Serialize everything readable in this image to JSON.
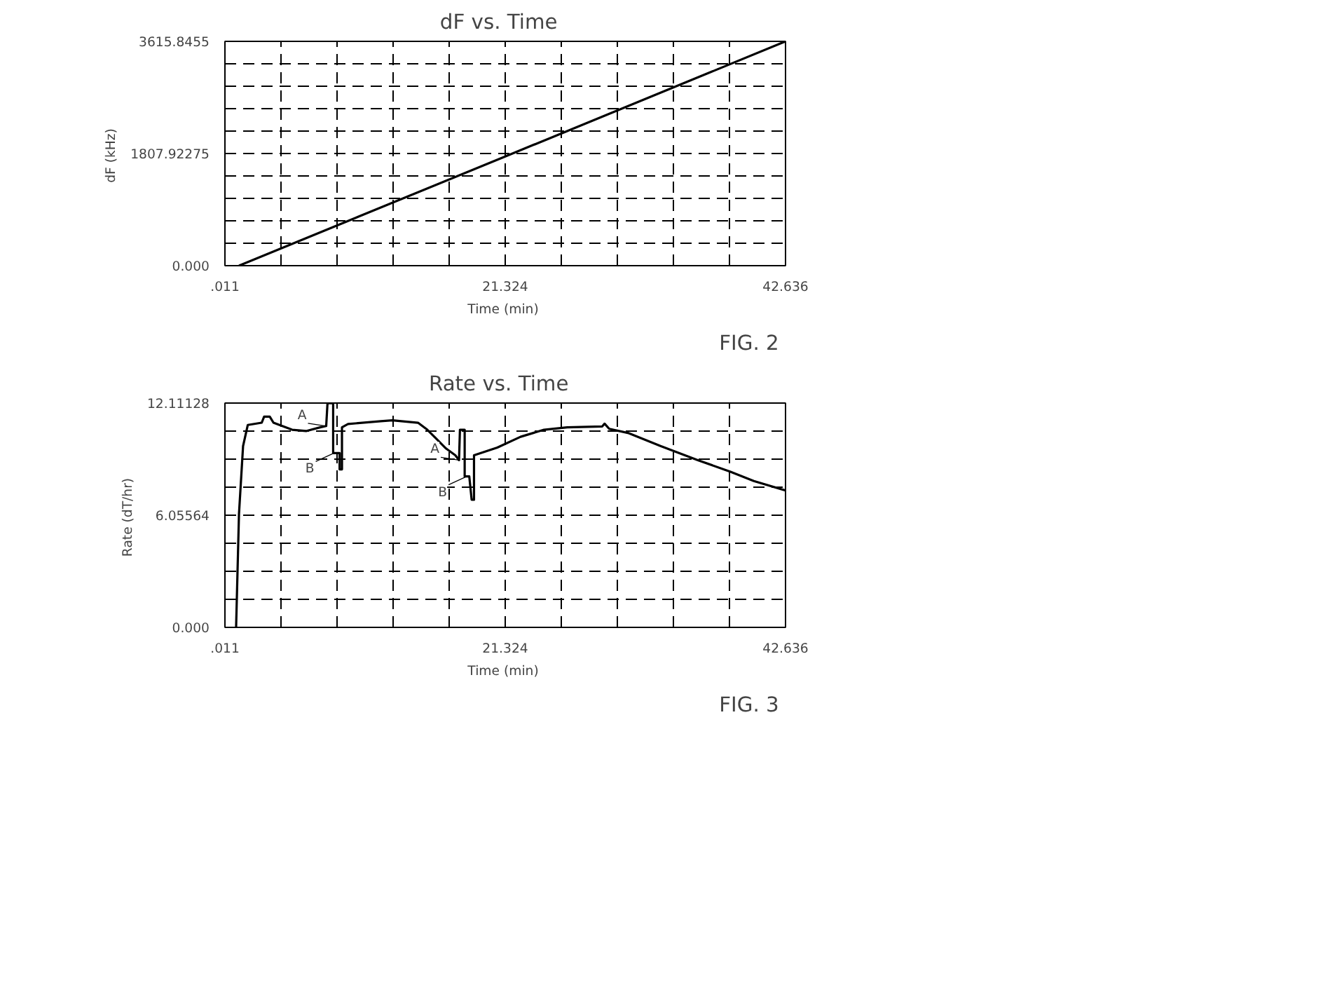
{
  "chart_data": [
    {
      "type": "line",
      "title": "dF  vs.  Time",
      "xlabel": "Time  (min)",
      "ylabel": "dF  (kHz)",
      "x": [
        1.08,
        21.324,
        42.636
      ],
      "series": [
        {
          "color": "#000000",
          "values": [
            0,
            1760,
            3615.8455
          ]
        }
      ],
      "xlim": [
        0.011,
        42.636
      ],
      "ylim": [
        0,
        3615.8455
      ],
      "xticks": [
        {
          "value": 0.011,
          "label": ".011"
        },
        {
          "value": 4.2735,
          "label": null
        },
        {
          "value": 8.536,
          "label": null
        },
        {
          "value": 12.7985,
          "label": null
        },
        {
          "value": 17.061,
          "label": null
        },
        {
          "value": 21.324,
          "label": "21.324"
        },
        {
          "value": 25.5865,
          "label": null
        },
        {
          "value": 29.849,
          "label": null
        },
        {
          "value": 34.1115,
          "label": null
        },
        {
          "value": 38.374,
          "label": null
        },
        {
          "value": 42.636,
          "label": "42.636"
        }
      ],
      "yticks": [
        {
          "value": 0,
          "label": "0.000"
        },
        {
          "value": 361.58455,
          "label": null
        },
        {
          "value": 723.1691,
          "label": null
        },
        {
          "value": 1084.75365,
          "label": null
        },
        {
          "value": 1446.3382,
          "label": null
        },
        {
          "value": 1807.92275,
          "label": "1807.92275"
        },
        {
          "value": 2169.5073,
          "label": null
        },
        {
          "value": 2531.09185,
          "label": null
        },
        {
          "value": 2892.6764,
          "label": null
        },
        {
          "value": 3254.26095,
          "label": null
        },
        {
          "value": 3615.8455,
          "label": "3615.8455"
        }
      ],
      "grid": true,
      "annotations": [
        "FIG.  2"
      ]
    },
    {
      "type": "line",
      "title": "Rate  vs.  Time",
      "xlabel": "Time  (min)",
      "ylabel": "Rate  (dT/hr)",
      "x": [
        0.86,
        1.08,
        1.39,
        1.75,
        2.81,
        2.99,
        3.42,
        3.7,
        5.12,
        6.18,
        7.25,
        7.71,
        7.81,
        8.24,
        8.24,
        8.73,
        8.73,
        8.91,
        8.91,
        9.37,
        11.86,
        12.74,
        14.69,
        15.4,
        16.11,
        16.82,
        17.53,
        17.81,
        17.88,
        18.24,
        18.24,
        18.59,
        18.77,
        18.95,
        18.95,
        20.72,
        22.49,
        24.27,
        26.04,
        28.7,
        28.88,
        29.23,
        30.65,
        33.13,
        35.97,
        38.45,
        40.23,
        42.636
      ],
      "series": [
        {
          "color": "#000000",
          "values": [
            0,
            6.13,
            9.79,
            10.93,
            11.05,
            11.38,
            11.38,
            11.05,
            10.67,
            10.6,
            10.8,
            10.87,
            12.11,
            12.11,
            9.41,
            9.41,
            8.53,
            8.53,
            10.8,
            10.98,
            11.13,
            11.18,
            11.05,
            10.67,
            10.17,
            9.66,
            9.29,
            9.03,
            10.67,
            10.67,
            8.15,
            8.15,
            6.89,
            6.89,
            9.29,
            9.71,
            10.29,
            10.67,
            10.8,
            10.85,
            11.0,
            10.72,
            10.5,
            9.79,
            9.03,
            8.4,
            7.9,
            7.39
          ]
        }
      ],
      "xlim": [
        0.011,
        42.636
      ],
      "ylim": [
        0,
        12.11128
      ],
      "xticks": [
        {
          "value": 0.011,
          "label": ".011"
        },
        {
          "value": 4.2735,
          "label": null
        },
        {
          "value": 8.536,
          "label": null
        },
        {
          "value": 12.7985,
          "label": null
        },
        {
          "value": 17.061,
          "label": null
        },
        21.324,
        {
          "value": 25.5865,
          "label": null
        },
        {
          "value": 29.849,
          "label": null
        },
        {
          "value": 34.1115,
          "label": null
        },
        {
          "value": 38.374,
          "label": null
        },
        42.636
      ],
      "yticks": [
        {
          "value": 0,
          "label": "0.000"
        },
        {
          "value": 1.51391,
          "label": null
        },
        {
          "value": 3.02782,
          "label": null
        },
        {
          "value": 4.54173,
          "label": null
        },
        6.05564,
        {
          "value": 7.56955,
          "label": null
        },
        {
          "value": 9.08346,
          "label": null
        },
        {
          "value": 10.59737,
          "label": null
        },
        12.11128
      ],
      "grid": true,
      "annotations": [
        {
          "text": "A",
          "x": 7.71,
          "y": 10.87
        },
        {
          "text": "B",
          "x": 8.3,
          "y": 9.41
        },
        {
          "text": "A",
          "x": 17.81,
          "y": 9.03
        },
        {
          "text": "B",
          "x": 18.4,
          "y": 8.15
        },
        "FIG.  3"
      ]
    }
  ]
}
